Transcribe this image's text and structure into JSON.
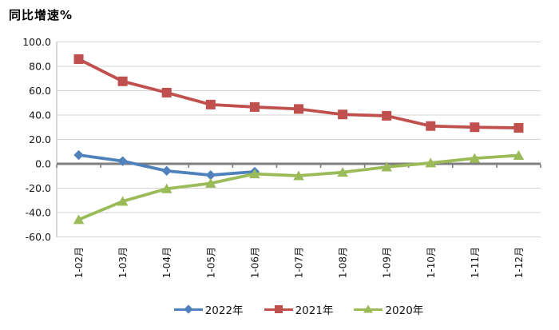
{
  "chart_data": {
    "type": "line",
    "title": "同比增速%",
    "categories": [
      "1-02月",
      "1-03月",
      "1-04月",
      "1-05月",
      "1-06月",
      "1-07月",
      "1-08月",
      "1-09月",
      "1-10月",
      "1-11月",
      "1-12月"
    ],
    "series": [
      {
        "name": "2022年",
        "color": "#4F81BD",
        "marker": "diamond",
        "values": [
          7.2,
          2.2,
          -5.8,
          -9.3,
          -6.5
        ]
      },
      {
        "name": "2021年",
        "color": "#C0504D",
        "marker": "square",
        "values": [
          85.9,
          67.7,
          58.4,
          48.6,
          46.6,
          45.0,
          40.5,
          39.4,
          31.0,
          30.0,
          29.5
        ]
      },
      {
        "name": "2020年",
        "color": "#9BBB59",
        "marker": "triangle",
        "values": [
          -45.8,
          -30.8,
          -20.5,
          -16.0,
          -8.3,
          -9.8,
          -7.0,
          -2.6,
          0.7,
          4.5,
          6.9
        ]
      }
    ],
    "ylim": [
      -60,
      100
    ],
    "yticks": [
      {
        "v": 100,
        "label": "100.0"
      },
      {
        "v": 80,
        "label": "80.0"
      },
      {
        "v": 60,
        "label": "60.0"
      },
      {
        "v": 40,
        "label": "40.0"
      },
      {
        "v": 20,
        "label": "20.0"
      },
      {
        "v": 0,
        "label": "0.0"
      },
      {
        "v": -20,
        "label": "-20.0"
      },
      {
        "v": -40,
        "label": "-40.0"
      },
      {
        "v": -60,
        "label": "-60.0"
      }
    ],
    "grid": true,
    "legend_position": "bottom-center",
    "colors": {
      "gridline": "#D3D3D3",
      "zero_axis": "#7F7F7F",
      "y_axis_line": "#BFBFBF",
      "background": "#FFFFFF"
    }
  }
}
